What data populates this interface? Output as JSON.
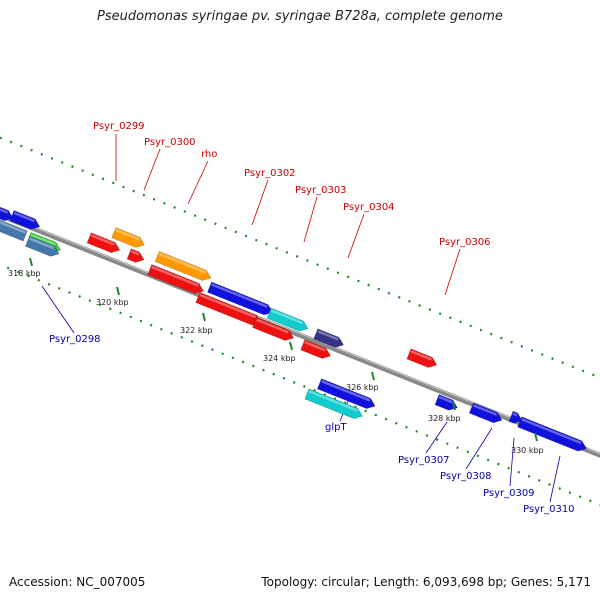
{
  "title": "Pseudomonas syringae pv. syringae B728a, complete genome",
  "footer": {
    "accession": "Accession: NC_007005",
    "summary": "Topology: circular; Length: 6,093,698 bp; Genes: 5,171"
  },
  "colors": {
    "red": "#ee1111",
    "orange": "#ff9900",
    "blue": "#1111dd",
    "cyan": "#11cccc",
    "navy": "#333388",
    "steel": "#4477aa",
    "green": "#33cc33",
    "backbone": "#888888",
    "dots": "#228822",
    "label_top": "#cc0000",
    "label_bottom": "#0000aa"
  },
  "scale_ticks": [
    {
      "label": "318 kbp"
    },
    {
      "label": "320 kbp"
    },
    {
      "label": "322 kbp"
    },
    {
      "label": "324 kbp"
    },
    {
      "label": "326 kbp"
    },
    {
      "label": "328 kbp"
    },
    {
      "label": "330 kbp"
    }
  ],
  "gene_labels": {
    "top": [
      {
        "name": "Psyr_0299"
      },
      {
        "name": "Psyr_0300"
      },
      {
        "name": "rho"
      },
      {
        "name": "Psyr_0302"
      },
      {
        "name": "Psyr_0303"
      },
      {
        "name": "Psyr_0304"
      },
      {
        "name": "Psyr_0306"
      }
    ],
    "bottom": [
      {
        "name": "Psyr_0298"
      },
      {
        "name": "glpT"
      },
      {
        "name": "Psyr_0307"
      },
      {
        "name": "Psyr_0308"
      },
      {
        "name": "Psyr_0309"
      },
      {
        "name": "Psyr_0310"
      }
    ]
  },
  "genes": [
    {
      "color": "orange"
    },
    {
      "color": "red"
    },
    {
      "color": "red"
    },
    {
      "color": "orange"
    },
    {
      "color": "red"
    },
    {
      "color": "blue"
    },
    {
      "color": "red"
    },
    {
      "color": "cyan"
    },
    {
      "color": "red"
    },
    {
      "color": "navy"
    },
    {
      "color": "red"
    },
    {
      "color": "red"
    },
    {
      "color": "blue"
    },
    {
      "color": "blue"
    },
    {
      "color": "steel"
    },
    {
      "color": "green"
    },
    {
      "color": "steel"
    },
    {
      "color": "blue"
    },
    {
      "color": "cyan"
    },
    {
      "color": "blue"
    },
    {
      "color": "blue"
    },
    {
      "color": "blue"
    },
    {
      "color": "blue"
    }
  ]
}
